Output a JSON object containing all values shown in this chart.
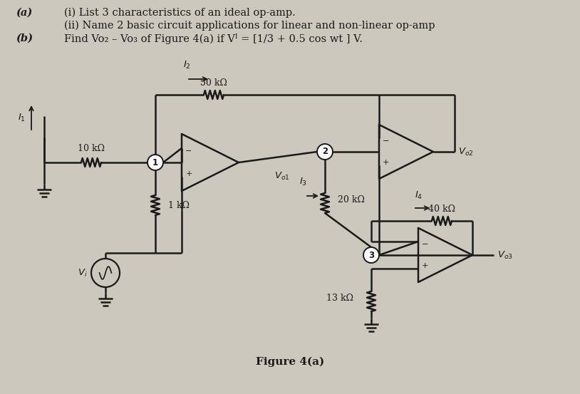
{
  "bg_color": "#cdc8be",
  "text_color": "#1a1a1a",
  "line_color": "#1a1a1a",
  "title": "Figure 4(a)",
  "label_a": "(a)",
  "label_b": "(b)",
  "line1": "(i) List 3 characteristics of an ideal op-amp.",
  "line2": "(ii) Name 2 basic circuit applications for linear and non-linear op-amp",
  "line3": "Find Vo₂ – Vo₃ of Figure 4(a) if Vᴵ = [1/3 + 0.5 cos wt ] V.",
  "font_size_main": 10.5,
  "font_size_small": 9.5,
  "font_size_label": 9
}
